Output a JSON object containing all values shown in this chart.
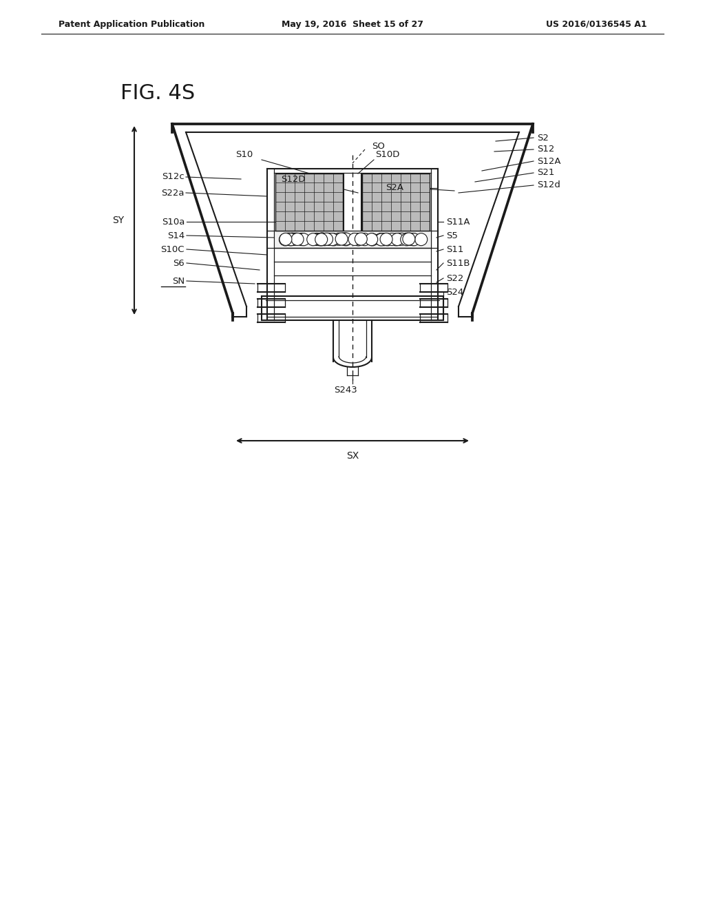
{
  "bg_color": "#ffffff",
  "line_color": "#1a1a1a",
  "header_left": "Patent Application Publication",
  "header_mid": "May 19, 2016  Sheet 15 of 27",
  "header_right": "US 2016/0136545 A1",
  "fig_label": "FIG. 4S",
  "lw_outer": 2.2,
  "lw_main": 1.5,
  "lw_thin": 0.9,
  "label_fs": 9.5
}
